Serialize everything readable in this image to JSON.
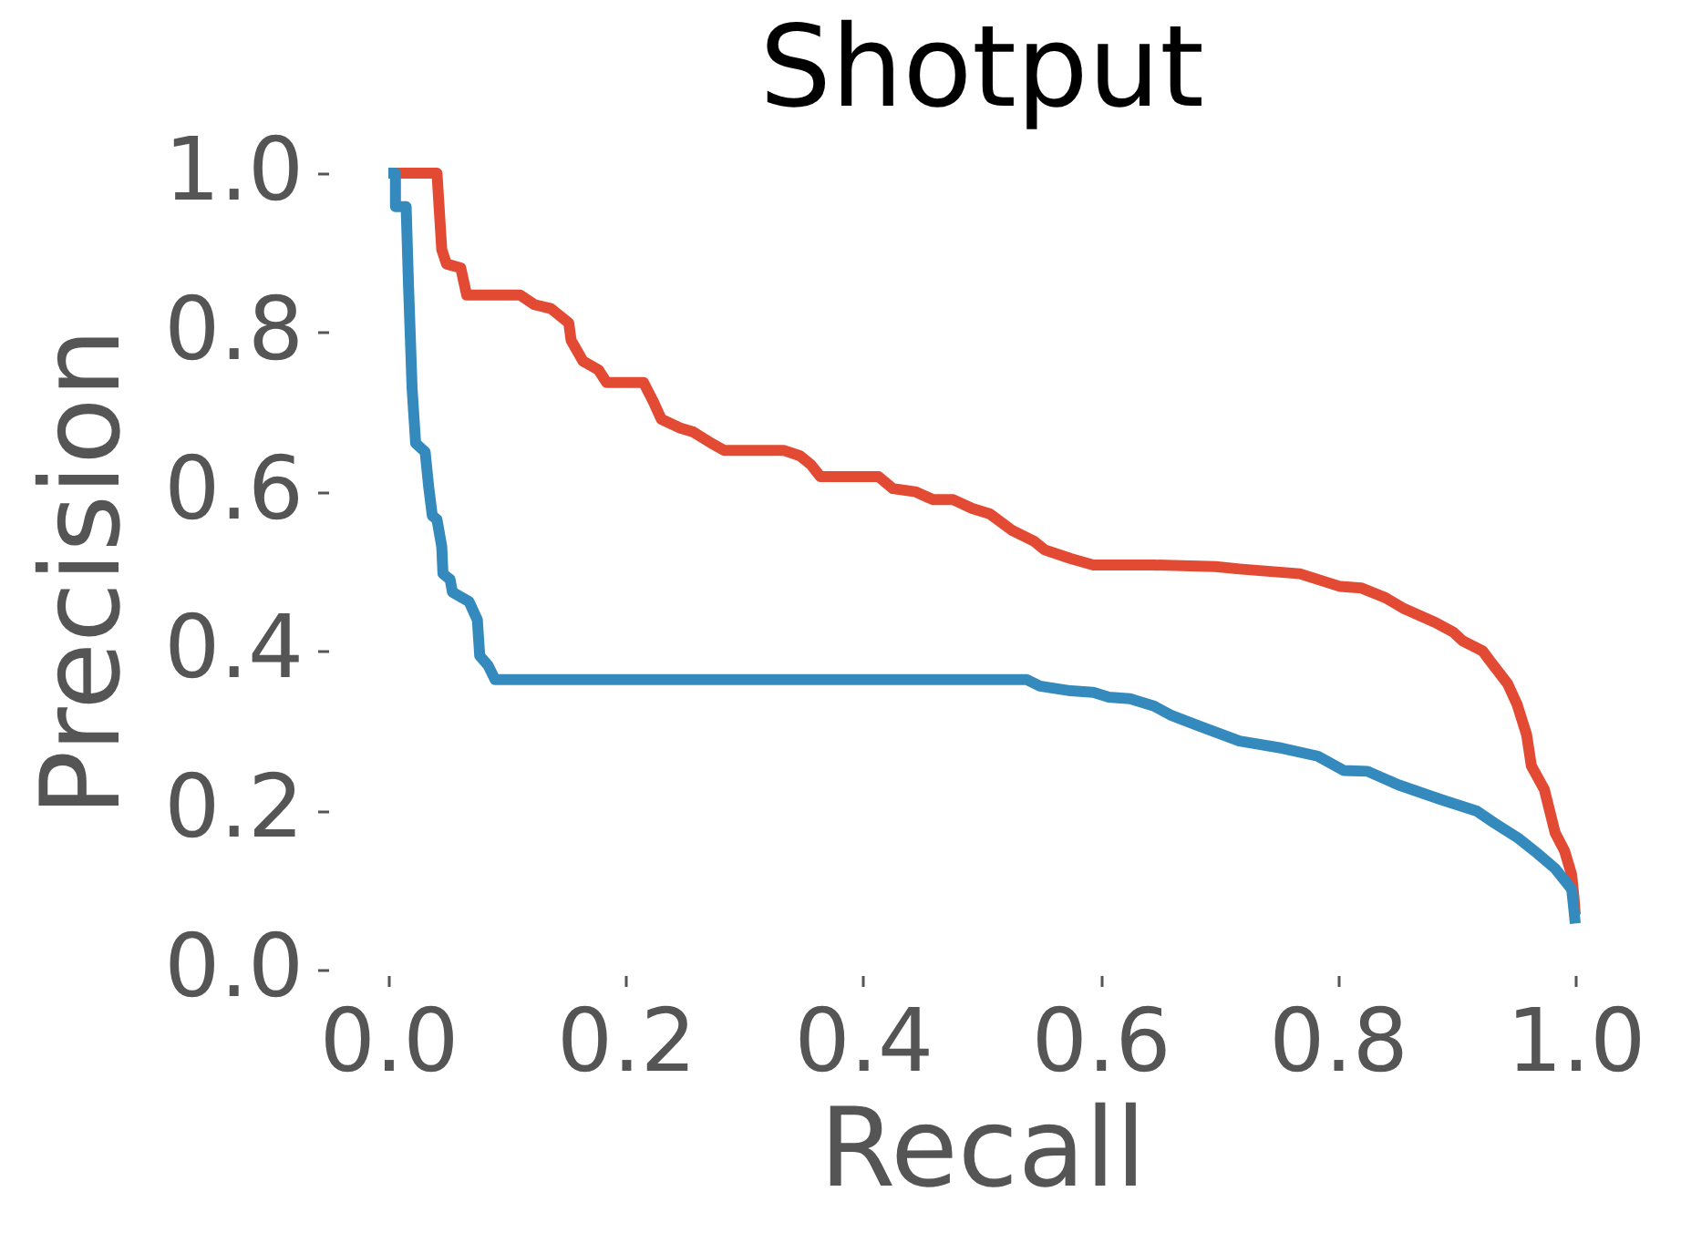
{
  "chart_data": {
    "type": "line",
    "title": "Shotput",
    "xlabel": "Recall",
    "ylabel": "Precision",
    "xlim": [
      0,
      1
    ],
    "ylim": [
      0,
      1
    ],
    "xticks": [
      {
        "value": 0,
        "label": "0.0"
      },
      0.2,
      0.4,
      0.6,
      0.8,
      {
        "value": 1,
        "label": "1.0"
      }
    ],
    "yticks": [
      {
        "value": 0,
        "label": "0.0"
      },
      0.2,
      0.4,
      0.6,
      0.8,
      {
        "value": 1,
        "label": "1.0"
      }
    ],
    "grid": false,
    "line_style": "solid",
    "series": [
      {
        "color": "#e24a33",
        "x": [
          0.005,
          0.041,
          0.045,
          0.049,
          0.061,
          0.066,
          0.111,
          0.123,
          0.137,
          0.152,
          0.154,
          0.164,
          0.177,
          0.184,
          0.215,
          0.223,
          0.23,
          0.246,
          0.257,
          0.272,
          0.283,
          0.333,
          0.347,
          0.356,
          0.364,
          0.413,
          0.425,
          0.444,
          0.459,
          0.476,
          0.492,
          0.507,
          0.525,
          0.544,
          0.553,
          0.575,
          0.594,
          0.645,
          0.697,
          0.717,
          0.768,
          0.802,
          0.82,
          0.84,
          0.856,
          0.882,
          0.897,
          0.905,
          0.922,
          0.929,
          0.943,
          0.951,
          0.959,
          0.963,
          0.974,
          0.983,
          0.991,
          0.997,
          0.999,
          1.0
        ],
        "values": [
          1.0,
          1.0,
          0.904,
          0.886,
          0.881,
          0.847,
          0.847,
          0.835,
          0.83,
          0.812,
          0.79,
          0.764,
          0.753,
          0.737,
          0.737,
          0.714,
          0.691,
          0.68,
          0.675,
          0.661,
          0.652,
          0.652,
          0.645,
          0.634,
          0.619,
          0.619,
          0.604,
          0.6,
          0.59,
          0.59,
          0.579,
          0.572,
          0.552,
          0.538,
          0.527,
          0.516,
          0.508,
          0.508,
          0.506,
          0.503,
          0.497,
          0.481,
          0.479,
          0.467,
          0.453,
          0.436,
          0.424,
          0.413,
          0.4,
          0.386,
          0.359,
          0.333,
          0.295,
          0.256,
          0.226,
          0.172,
          0.149,
          0.119,
          0.089,
          0.069
        ]
      },
      {
        "color": "#348abd",
        "x": [
          0.0,
          0.006,
          0.006,
          0.015,
          0.017,
          0.02,
          0.023,
          0.031,
          0.034,
          0.037,
          0.041,
          0.045,
          0.046,
          0.052,
          0.054,
          0.068,
          0.075,
          0.077,
          0.084,
          0.09,
          0.538,
          0.549,
          0.575,
          0.594,
          0.607,
          0.625,
          0.645,
          0.66,
          0.683,
          0.717,
          0.753,
          0.783,
          0.805,
          0.825,
          0.851,
          0.886,
          0.917,
          0.932,
          0.952,
          0.968,
          0.983,
          0.997,
          0.999,
          1.0
        ],
        "values": [
          1.0,
          1.0,
          0.958,
          0.958,
          0.859,
          0.73,
          0.661,
          0.65,
          0.606,
          0.57,
          0.565,
          0.531,
          0.497,
          0.49,
          0.474,
          0.462,
          0.439,
          0.394,
          0.382,
          0.364,
          0.364,
          0.356,
          0.35,
          0.348,
          0.342,
          0.34,
          0.331,
          0.319,
          0.306,
          0.287,
          0.278,
          0.268,
          0.25,
          0.249,
          0.232,
          0.214,
          0.199,
          0.184,
          0.165,
          0.146,
          0.127,
          0.101,
          0.073,
          0.058
        ]
      }
    ]
  }
}
